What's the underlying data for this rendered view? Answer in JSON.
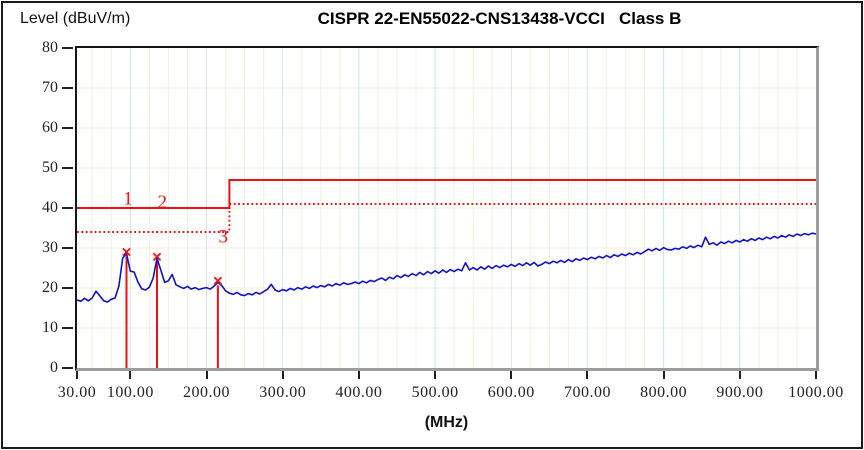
{
  "header": {
    "y_axis_title": "Level (dBuV/m)",
    "title": "CISPR 22-EN55022-CNS13438-VCCI   Class B"
  },
  "x_axis_label": "(MHz)",
  "chart_data": {
    "type": "line",
    "title": "CISPR 22-EN55022-CNS13438-VCCI   Class B",
    "xlabel": "(MHz)",
    "ylabel": "Level (dBuV/m)",
    "xlim": [
      30,
      1000
    ],
    "ylim": [
      0,
      80
    ],
    "x_ticks": [
      {
        "f": 30,
        "label": "30.00"
      },
      {
        "f": 100,
        "label": "100.00"
      },
      {
        "f": 200,
        "label": "200.00"
      },
      {
        "f": 300,
        "label": "300.00"
      },
      {
        "f": 400,
        "label": "400.00"
      },
      {
        "f": 500,
        "label": "500.00"
      },
      {
        "f": 600,
        "label": "600.00"
      },
      {
        "f": 700,
        "label": "700.00"
      },
      {
        "f": 800,
        "label": "800.00"
      },
      {
        "f": 900,
        "label": "900.00"
      },
      {
        "f": 1000,
        "label": "1000.00"
      }
    ],
    "y_ticks": [
      0,
      10,
      20,
      30,
      40,
      50,
      60,
      70,
      80
    ],
    "grid": {
      "h_step_db": 10,
      "v_minor_step_mhz": 25,
      "v_major_step_mhz": 100,
      "h_color": "#f6efdd",
      "v_minor_color": "#f4efdf",
      "v_major_color": "#cde7e3"
    },
    "colors": {
      "trace": "#1111cc",
      "limit": "#ee1111",
      "marker": "#ee1111"
    },
    "limit_lines": [
      {
        "name": "quasi-peak-limit",
        "style": "solid",
        "db_low": 40,
        "db_high": 47,
        "step_mhz": 230,
        "points": [
          [
            30,
            40
          ],
          [
            230,
            40
          ],
          [
            230,
            47
          ],
          [
            1000,
            47
          ]
        ]
      },
      {
        "name": "average-limit",
        "style": "dotted",
        "db_low": 34,
        "db_high": 41,
        "step_mhz": 230,
        "points": [
          [
            30,
            34
          ],
          [
            230,
            34
          ],
          [
            230,
            41
          ],
          [
            1000,
            41
          ]
        ]
      }
    ],
    "annotations": [
      {
        "text": "1",
        "f": 97,
        "db": 40.9
      },
      {
        "text": "2",
        "f": 142,
        "db": 40.0
      },
      {
        "text": "3",
        "f": 222,
        "db": 31.4
      }
    ],
    "peak_markers": [
      {
        "f": 95,
        "db": 29.0
      },
      {
        "f": 135,
        "db": 27.8
      },
      {
        "f": 215,
        "db": 21.8
      }
    ],
    "trace": {
      "name": "measured-emission",
      "f_start": 30,
      "f_step": 5,
      "values": [
        17.0,
        16.7,
        17.4,
        16.8,
        17.5,
        19.2,
        18.0,
        16.8,
        16.5,
        17.2,
        17.5,
        20.5,
        27.5,
        28.6,
        24.2,
        24.0,
        21.5,
        19.8,
        19.5,
        20.2,
        22.5,
        27.4,
        24.5,
        21.4,
        21.8,
        23.4,
        20.8,
        20.3,
        19.9,
        20.4,
        19.7,
        20.1,
        19.6,
        19.9,
        20.1,
        19.7,
        20.5,
        21.4,
        20.6,
        19.3,
        18.7,
        18.4,
        18.9,
        18.3,
        18.1,
        18.6,
        18.3,
        18.9,
        18.5,
        19.1,
        19.7,
        20.9,
        19.5,
        19.1,
        19.6,
        19.3,
        19.9,
        19.5,
        20.1,
        19.7,
        20.3,
        19.9,
        20.5,
        20.1,
        20.6,
        20.3,
        20.9,
        20.5,
        21.1,
        20.7,
        21.3,
        20.9,
        21.1,
        21.5,
        21.1,
        21.7,
        21.3,
        21.9,
        21.6,
        22.1,
        22.5,
        21.9,
        22.7,
        22.3,
        23.1,
        22.6,
        23.3,
        22.9,
        23.6,
        23.1,
        23.9,
        23.3,
        24.1,
        23.6,
        24.3,
        23.7,
        24.5,
        23.9,
        24.6,
        24.1,
        24.7,
        24.3,
        26.3,
        24.5,
        25.1,
        24.5,
        25.3,
        24.7,
        25.5,
        24.9,
        25.6,
        25.1,
        25.7,
        25.3,
        25.9,
        25.4,
        26.1,
        25.6,
        26.3,
        25.7,
        26.4,
        25.5,
        25.9,
        26.5,
        26.1,
        26.7,
        26.3,
        26.9,
        26.4,
        27.1,
        26.6,
        27.3,
        26.9,
        27.5,
        27.1,
        27.7,
        27.3,
        27.9,
        27.5,
        28.1,
        27.6,
        28.3,
        27.9,
        28.5,
        28.1,
        28.7,
        28.3,
        28.9,
        28.5,
        29.1,
        29.7,
        29.3,
        29.9,
        29.4,
        30.1,
        29.6,
        29.5,
        29.9,
        29.7,
        30.3,
        29.9,
        30.5,
        30.1,
        30.7,
        30.3,
        32.7,
        30.9,
        31.3,
        30.7,
        31.5,
        31.1,
        31.7,
        31.3,
        31.9,
        31.5,
        32.1,
        31.7,
        32.3,
        31.9,
        32.5,
        32.1,
        32.7,
        32.3,
        32.9,
        32.5,
        33.1,
        32.7,
        33.3,
        32.9,
        33.5,
        33.1,
        33.6,
        33.3,
        33.7,
        33.5
      ]
    }
  }
}
